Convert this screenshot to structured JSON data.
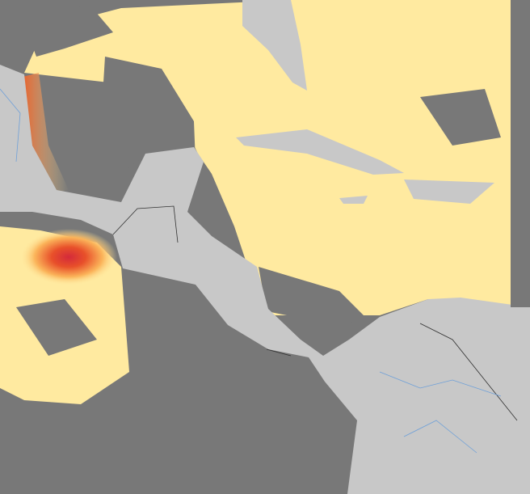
{
  "colors": {
    "no_data": "#787878",
    "land": "#c8c8c8",
    "low": "#ffeaa0",
    "medium": "#fbb45a",
    "high": "#e8502a",
    "peak": "#d42a3a",
    "rivers": "#6fa0d8",
    "borders": "#303030"
  }
}
